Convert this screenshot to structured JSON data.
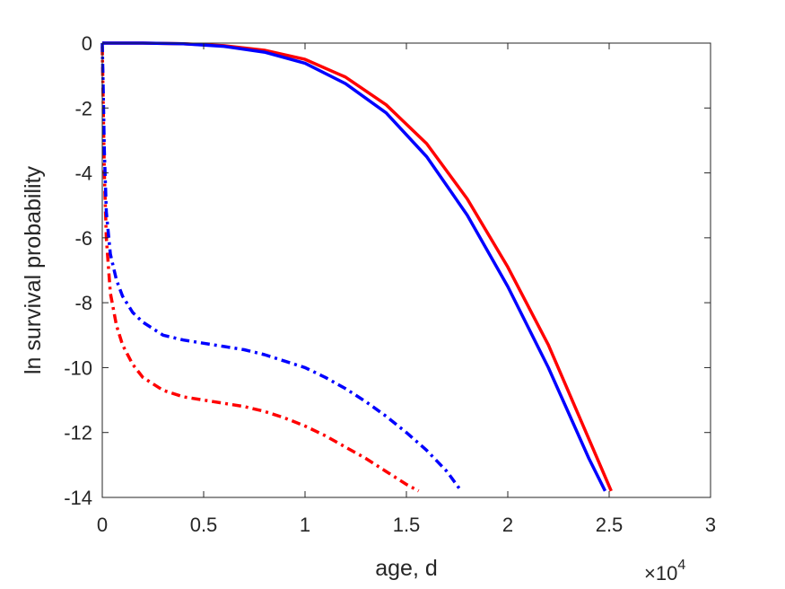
{
  "chart_data": {
    "type": "line",
    "xlabel": "age, d",
    "ylabel": "ln survival probability",
    "x_multiplier_label": "×10",
    "x_multiplier_exponent": "4",
    "xlim": [
      0,
      30000
    ],
    "ylim": [
      -14,
      0
    ],
    "xticks": [
      0,
      5000,
      10000,
      15000,
      20000,
      25000,
      30000
    ],
    "xtick_labels": [
      "0",
      "0.5",
      "1",
      "1.5",
      "2",
      "2.5",
      "3"
    ],
    "yticks": [
      0,
      -2,
      -4,
      -6,
      -8,
      -10,
      -12,
      -14
    ],
    "ytick_labels": [
      "0",
      "-2",
      "-4",
      "-6",
      "-8",
      "-10",
      "-12",
      "-14"
    ],
    "grid": false,
    "series": [
      {
        "color": "#ff0000",
        "dash": "solid",
        "x": [
          0,
          2000,
          4000,
          6000,
          8000,
          10000,
          12000,
          14000,
          16000,
          18000,
          20000,
          22000,
          24000,
          25100
        ],
        "y": [
          0,
          0,
          -0.02,
          -0.08,
          -0.22,
          -0.5,
          -1.05,
          -1.9,
          -3.1,
          -4.8,
          -6.9,
          -9.3,
          -12.2,
          -13.8
        ]
      },
      {
        "color": "#0000ff",
        "dash": "solid",
        "x": [
          0,
          2000,
          4000,
          6000,
          8000,
          10000,
          12000,
          14000,
          16000,
          18000,
          20000,
          22000,
          24000,
          24800
        ],
        "y": [
          0,
          0,
          -0.02,
          -0.1,
          -0.28,
          -0.62,
          -1.25,
          -2.15,
          -3.5,
          -5.3,
          -7.5,
          -10.0,
          -12.8,
          -13.8
        ]
      },
      {
        "color": "#ff0000",
        "dash": "dashdot",
        "x": [
          0,
          100,
          200,
          400,
          700,
          1000,
          1500,
          2000,
          3000,
          4000,
          5000,
          6000,
          7000,
          8000,
          9000,
          10000,
          11000,
          12000,
          13000,
          14000,
          15000,
          15600
        ],
        "y": [
          -0.1,
          -4.0,
          -6.0,
          -7.7,
          -8.7,
          -9.3,
          -9.9,
          -10.3,
          -10.7,
          -10.9,
          -11.0,
          -11.1,
          -11.2,
          -11.35,
          -11.55,
          -11.8,
          -12.1,
          -12.45,
          -12.8,
          -13.2,
          -13.6,
          -13.8
        ]
      },
      {
        "color": "#0000ff",
        "dash": "dashdot",
        "x": [
          0,
          50,
          100,
          200,
          400,
          700,
          1000,
          1500,
          2000,
          3000,
          4000,
          5000,
          6000,
          7000,
          8000,
          9000,
          10000,
          11000,
          12000,
          13000,
          14000,
          15000,
          16000,
          17000,
          17700
        ],
        "y": [
          0,
          -1.5,
          -3.3,
          -5.2,
          -6.5,
          -7.3,
          -7.8,
          -8.3,
          -8.6,
          -9.0,
          -9.15,
          -9.25,
          -9.35,
          -9.45,
          -9.6,
          -9.8,
          -10.0,
          -10.3,
          -10.65,
          -11.05,
          -11.5,
          -12.0,
          -12.55,
          -13.2,
          -13.8
        ]
      }
    ]
  }
}
